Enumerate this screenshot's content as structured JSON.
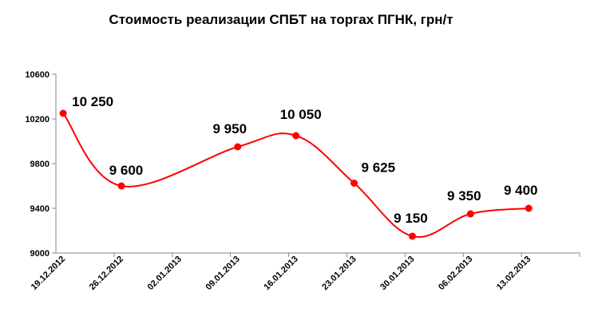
{
  "chart_data": {
    "type": "line",
    "title": "Стоимость реализации СПБТ на торгах ПГНК, грн/т",
    "xlabel": "",
    "ylabel": "",
    "ylim": [
      9000,
      10600
    ],
    "yticks": [
      "9000",
      "9400",
      "9800",
      "10200",
      "10600"
    ],
    "ytick_values": [
      9000,
      9400,
      9800,
      10200,
      10600
    ],
    "categories": [
      "19.12.2012",
      "26.12.2012",
      "02.01.2013",
      "09.01.2013",
      "16.01.2013",
      "23.01.2013",
      "30.01.2013",
      "06.02.2013",
      "13.02.2013"
    ],
    "series": [
      {
        "values": [
          10250,
          9600,
          null,
          9950,
          10050,
          9625,
          9150,
          9350,
          9400
        ],
        "labels": [
          "10 250",
          "9 600",
          "",
          "9 950",
          "10 050",
          "9 625",
          "9 150",
          "9 350",
          "9 400"
        ]
      }
    ],
    "grid": false,
    "line_color": "#ff0000",
    "marker_color": "#ff0000",
    "smooth": true
  }
}
